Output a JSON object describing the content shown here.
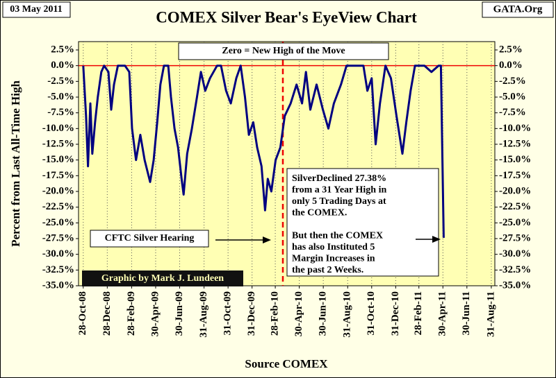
{
  "chart_data": {
    "type": "line",
    "title": "COMEX Silver Bear's EyeView Chart",
    "date_label": "03 May 2011",
    "source_site": "GATA.Org",
    "y_label": "Percent from Last All-Time High",
    "x_label": "Source COMEX",
    "annotations": {
      "zero_note": "Zero = New High of the Move",
      "hearing": "CFTC Silver Hearing",
      "credit": "Graphic by Mark J. Lundeen",
      "decline_note": [
        "SilverDeclined 27.38%",
        "from a 31 Year High in",
        "only 5 Trading Days at",
        "the COMEX.",
        "",
        "But then the COMEX",
        "has also Instituted 5",
        "Margin Increases in",
        "the past 2 Weeks."
      ]
    },
    "color": "#000080",
    "grid": true,
    "xlim": [
      "16-Oct-08",
      "09-Sep-11"
    ],
    "xticks": [
      "28-Oct-08",
      "28-Dec-08",
      "28-Feb-09",
      "30-Apr-09",
      "30-Jun-09",
      "31-Aug-09",
      "31-Oct-09",
      "31-Dec-09",
      "28-Feb-10",
      "30-Apr-10",
      "30-Jun-10",
      "31-Aug-10",
      "31-Oct-10",
      "31-Dec-10",
      "28-Feb-11",
      "30-Apr-11",
      "30-Jun-11",
      "31-Aug-11"
    ],
    "ylim": [
      -35,
      2.5
    ],
    "yticks": [
      {
        "value": 2.5,
        "label": "2.5%"
      },
      {
        "value": 0,
        "label": "0.0%"
      },
      {
        "value": -2.5,
        "label": "-2.5%"
      },
      {
        "value": -5,
        "label": "-5.0%"
      },
      {
        "value": -7.5,
        "label": "-7.5%"
      },
      {
        "value": -10,
        "label": "-10.0%"
      },
      {
        "value": -12.5,
        "label": "-12.5%"
      },
      {
        "value": -15,
        "label": "-15.0%"
      },
      {
        "value": -17.5,
        "label": "-17.5%"
      },
      {
        "value": -20,
        "label": "-20.0%"
      },
      {
        "value": -22.5,
        "label": "-22.5%"
      },
      {
        "value": -25,
        "label": "-25.0%"
      },
      {
        "value": -27.5,
        "label": "-27.5%"
      },
      {
        "value": -30,
        "label": "-30.0%"
      },
      {
        "value": -32.5,
        "label": "-32.5%"
      },
      {
        "value": -35,
        "label": "-35.0%"
      }
    ],
    "y2lim": [
      -35,
      2.5
    ],
    "y2ticks": [
      {
        "value": 2.5,
        "label": "2.5%"
      },
      {
        "value": 0,
        "label": "0.0%"
      },
      {
        "value": -2.5,
        "label": "-2.5%"
      },
      {
        "value": -5,
        "label": "-5.0%"
      },
      {
        "value": -7.5,
        "label": "-7.5%"
      },
      {
        "value": -10,
        "label": "-10.0%"
      },
      {
        "value": -12.5,
        "label": "-12.5%"
      },
      {
        "value": -15,
        "label": "-15.0%"
      },
      {
        "value": -17.5,
        "label": "-17.5%"
      },
      {
        "value": -20,
        "label": "-20.0%"
      },
      {
        "value": -22.5,
        "label": "-22.5%"
      },
      {
        "value": -25,
        "label": "-25.0%"
      },
      {
        "value": -27.5,
        "label": "-27.5%"
      },
      {
        "value": -30,
        "label": "-30.0%"
      },
      {
        "value": -32.5,
        "label": "-32.5%"
      },
      {
        "value": -35,
        "label": "-35.0%"
      }
    ],
    "x": [
      "28-Oct-08",
      "04-Nov-08",
      "09-Nov-08",
      "15-Nov-08",
      "20-Nov-08",
      "27-Nov-08",
      "04-Dec-08",
      "13-Dec-08",
      "20-Dec-08",
      "31-Dec-08",
      "07-Jan-09",
      "14-Jan-09",
      "24-Jan-09",
      "11-Feb-09",
      "22-Feb-09",
      "01-Mar-09",
      "11-Mar-09",
      "22-Mar-09",
      "02-Apr-09",
      "16-Apr-09",
      "25-Apr-09",
      "04-May-09",
      "12-May-09",
      "21-May-09",
      "01-Jun-09",
      "08-Jun-09",
      "17-Jun-09",
      "26-Jun-09",
      "05-Jul-09",
      "10-Jul-09",
      "19-Jul-09",
      "31-Jul-09",
      "13-Aug-09",
      "23-Aug-09",
      "03-Sep-09",
      "15-Sep-09",
      "03-Oct-09",
      "13-Oct-09",
      "26-Oct-09",
      "07-Nov-09",
      "21-Nov-09",
      "02-Dec-09",
      "13-Dec-09",
      "23-Dec-09",
      "03-Jan-10",
      "13-Jan-10",
      "24-Jan-10",
      "02-Feb-10",
      "09-Feb-10",
      "18-Feb-10",
      "01-Mar-10",
      "13-Mar-10",
      "24-Mar-10",
      "08-Apr-10",
      "23-Apr-10",
      "07-May-10",
      "17-May-10",
      "28-May-10",
      "13-Jun-10",
      "29-Jun-10",
      "13-Jul-10",
      "27-Jul-10",
      "14-Aug-10",
      "28-Aug-10",
      "18-Sep-10",
      "10-Oct-10",
      "20-Oct-10",
      "31-Oct-10",
      "10-Nov-10",
      "21-Nov-10",
      "05-Dec-10",
      "19-Dec-10",
      "02-Jan-11",
      "17-Jan-11",
      "27-Jan-11",
      "07-Feb-11",
      "18-Feb-11",
      "14-Mar-11",
      "01-Apr-11",
      "19-Apr-11",
      "25-Apr-11",
      "02-May-11"
    ],
    "values": [
      0,
      -8,
      -16,
      -6,
      -14,
      -9,
      -5,
      -1,
      0,
      -1,
      -7,
      -3,
      0,
      0,
      -1,
      -10,
      -15,
      -11,
      -15,
      -18.5,
      -15,
      -9,
      -3,
      0,
      0,
      -5,
      -10,
      -13,
      -18,
      -20.5,
      -14,
      -10,
      -5,
      -1,
      -4,
      -2,
      0,
      0,
      -4,
      -6,
      -2,
      0,
      -5,
      -11,
      -9,
      -13,
      -16,
      -23,
      -18,
      -20,
      -15,
      -13,
      -8,
      -6,
      -3,
      -6,
      -1,
      -7,
      -3,
      -7,
      -10,
      -6,
      -3,
      0,
      0,
      0,
      -4,
      -2,
      -12.5,
      -6,
      0,
      -2,
      -8,
      -14,
      -9,
      -4,
      0,
      0,
      -1,
      0,
      0,
      -27.38
    ]
  }
}
